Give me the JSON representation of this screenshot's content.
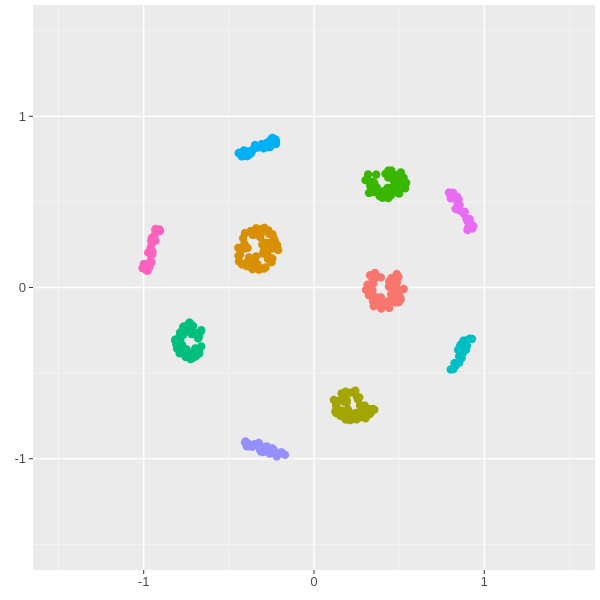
{
  "chart_data": {
    "type": "scatter",
    "title": "",
    "xlabel": "",
    "ylabel": "",
    "xlim": [
      -1.65,
      1.65
    ],
    "ylim": [
      -1.65,
      1.65
    ],
    "grid": true,
    "legend": "none",
    "x_ticks": [
      {
        "value": -1,
        "label": "-1"
      },
      {
        "value": 0,
        "label": "0"
      },
      {
        "value": 1,
        "label": "1"
      }
    ],
    "y_ticks": [
      {
        "value": 1,
        "label": "1"
      },
      {
        "value": 0,
        "label": "0"
      },
      {
        "value": -1,
        "label": "-1"
      }
    ],
    "clusters": [
      {
        "color": "#F8766D",
        "shape": "blob",
        "center": [
          0.41,
          -0.01
        ],
        "spread": [
          0.12,
          0.12
        ],
        "n": 60
      },
      {
        "color": "#D89000",
        "shape": "blob",
        "center": [
          -0.34,
          0.23
        ],
        "spread": [
          0.13,
          0.13
        ],
        "n": 60
      },
      {
        "color": "#A3A500",
        "shape": "blob",
        "center": [
          0.23,
          -0.69
        ],
        "spread": [
          0.13,
          0.09
        ],
        "n": 50
      },
      {
        "color": "#39B600",
        "shape": "blob",
        "center": [
          0.42,
          0.61
        ],
        "spread": [
          0.13,
          0.09
        ],
        "n": 50
      },
      {
        "color": "#00BF7D",
        "shape": "blob",
        "center": [
          -0.73,
          -0.31
        ],
        "spread": [
          0.09,
          0.11
        ],
        "n": 50
      },
      {
        "color": "#00BFC4",
        "shape": "line",
        "from": [
          0.8,
          -0.49
        ],
        "to": [
          0.91,
          -0.29
        ],
        "n": 30
      },
      {
        "color": "#00B0F6",
        "shape": "line",
        "from": [
          -0.44,
          0.77
        ],
        "to": [
          -0.22,
          0.86
        ],
        "n": 35
      },
      {
        "color": "#9590FF",
        "shape": "line",
        "from": [
          -0.42,
          -0.9
        ],
        "to": [
          -0.17,
          -0.98
        ],
        "n": 30
      },
      {
        "color": "#E76BF3",
        "shape": "line",
        "from": [
          0.8,
          0.56
        ],
        "to": [
          0.93,
          0.33
        ],
        "n": 30
      },
      {
        "color": "#FF62BC",
        "shape": "line",
        "from": [
          -0.99,
          0.1
        ],
        "to": [
          -0.92,
          0.35
        ],
        "n": 30
      }
    ]
  }
}
